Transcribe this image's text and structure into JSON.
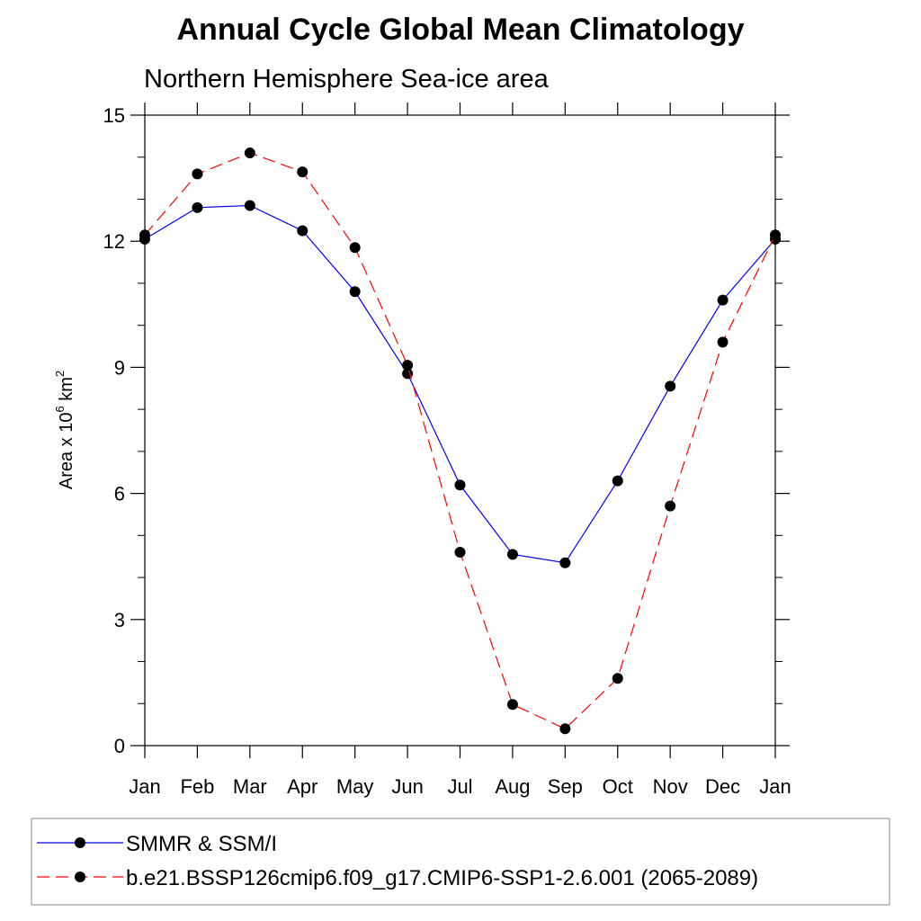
{
  "chart_data": {
    "type": "line",
    "title": "Annual Cycle Global Mean Climatology",
    "subtitle": "Northern Hemisphere Sea-ice area",
    "ylabel_prefix": "Area x 10",
    "ylabel_exp": "6",
    "ylabel_unit": " km",
    "ylabel_unit_exp": "2",
    "categories": [
      "Jan",
      "Feb",
      "Mar",
      "Apr",
      "May",
      "Jun",
      "Jul",
      "Aug",
      "Sep",
      "Oct",
      "Nov",
      "Dec",
      "Jan"
    ],
    "ylim": [
      0,
      15
    ],
    "yticks": [
      "0",
      "3",
      "6",
      "9",
      "12",
      "15"
    ],
    "grid": false,
    "legend_position": "bottom",
    "series": [
      {
        "name": "SMMR & SSM/I",
        "color": "#0000ff",
        "style": "solid",
        "values": [
          12.05,
          12.8,
          12.85,
          12.25,
          10.8,
          8.85,
          6.2,
          4.55,
          4.35,
          6.3,
          8.55,
          10.6,
          12.05
        ]
      },
      {
        "name": "b.e21.BSSP126cmip6.f09_g17.CMIP6-SSP1-2.6.001 (2065-2089)",
        "color": "#ff0000",
        "style": "dashed",
        "values": [
          12.15,
          13.6,
          14.1,
          13.65,
          11.85,
          9.05,
          4.6,
          0.98,
          0.4,
          1.6,
          5.7,
          9.6,
          12.15
        ]
      }
    ]
  }
}
